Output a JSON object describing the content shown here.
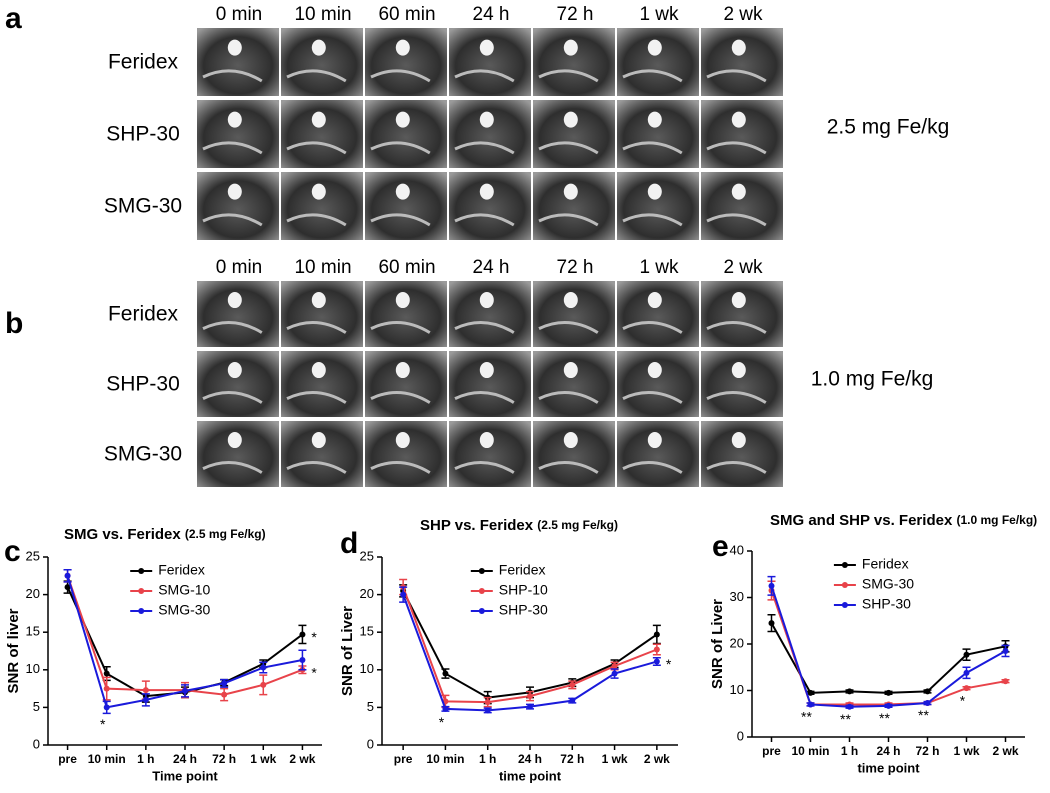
{
  "image_panels": [
    {
      "letter": "a",
      "timepoints": [
        "0 min",
        "10 min",
        "60 min",
        "24 h",
        "72 h",
        "1 wk",
        "2 wk"
      ],
      "agents": [
        "Feridex",
        "SHP-30",
        "SMG-30"
      ],
      "dose": "2.5 mg Fe/kg"
    },
    {
      "letter": "b",
      "timepoints": [
        "0 min",
        "10 min",
        "60 min",
        "24 h",
        "72 h",
        "1 wk",
        "2 wk"
      ],
      "agents": [
        "Feridex",
        "SHP-30",
        "SMG-30"
      ],
      "dose": "1.0 mg Fe/kg"
    }
  ],
  "chart_data": [
    {
      "type": "line",
      "letter": "c",
      "title": "SMG vs. Feridex",
      "title_note": "(2.5 mg Fe/kg)",
      "xlabel": "Time point",
      "ylabel": "SNR of liver",
      "categories": [
        "pre",
        "10 min",
        "1 h",
        "24 h",
        "72 h",
        "1 wk",
        "2 wk"
      ],
      "ylim": [
        0,
        25
      ],
      "yticks": [
        0,
        5,
        10,
        15,
        20,
        25
      ],
      "series": [
        {
          "name": "Feridex",
          "color": "#000000",
          "values": [
            21,
            9.5,
            6.5,
            7,
            8.3,
            10.8,
            14.7
          ],
          "errors": [
            0.8,
            0.9,
            0.8,
            0.7,
            0.4,
            0.5,
            1.2
          ]
        },
        {
          "name": "SMG-10",
          "color": "#e8434a",
          "values": [
            22.5,
            7.5,
            7.3,
            7.3,
            6.7,
            8,
            10
          ],
          "errors": [
            0.8,
            1.5,
            1.2,
            1,
            0.8,
            1.3,
            0.5
          ]
        },
        {
          "name": "SMG-30",
          "color": "#1a1adb",
          "values": [
            22.5,
            5,
            6,
            7.2,
            8.2,
            10.3,
            11.3
          ],
          "errors": [
            0.8,
            0.8,
            0.8,
            0.8,
            0.5,
            0.7,
            1.3
          ]
        }
      ],
      "annotations": [
        {
          "text": "*",
          "category": "10 min"
        },
        {
          "text": "*",
          "category": "2 wk",
          "series": "Feridex"
        },
        {
          "text": "*",
          "category": "2 wk",
          "series": "SMG-10"
        }
      ]
    },
    {
      "type": "line",
      "letter": "d",
      "title": "SHP vs. Feridex",
      "title_note": "(2.5 mg Fe/kg)",
      "xlabel": "time point",
      "ylabel": "SNR of Liver",
      "categories": [
        "pre",
        "10 min",
        "1 h",
        "24 h",
        "72 h",
        "1 wk",
        "2 wk"
      ],
      "ylim": [
        0,
        25
      ],
      "yticks": [
        0,
        5,
        10,
        15,
        20,
        25
      ],
      "series": [
        {
          "name": "Feridex",
          "color": "#000000",
          "values": [
            20.5,
            9.5,
            6.3,
            7,
            8.3,
            10.8,
            14.7
          ],
          "errors": [
            0.8,
            0.6,
            0.8,
            0.7,
            0.5,
            0.5,
            1.2
          ]
        },
        {
          "name": "SHP-10",
          "color": "#e8434a",
          "values": [
            21,
            5.8,
            5.7,
            6.5,
            8,
            10.5,
            12.7
          ],
          "errors": [
            1,
            0.8,
            0.6,
            0.6,
            0.5,
            0.5,
            0.7
          ]
        },
        {
          "name": "SHP-30",
          "color": "#1a1adb",
          "values": [
            20,
            4.8,
            4.6,
            5.1,
            5.9,
            9.5,
            11.1
          ],
          "errors": [
            1,
            0.3,
            0.3,
            0.3,
            0.3,
            0.6,
            0.5
          ]
        }
      ],
      "annotations": [
        {
          "text": "*",
          "category": "10 min"
        },
        {
          "text": "*",
          "category": "2 wk",
          "series": "SHP-30"
        }
      ]
    },
    {
      "type": "line",
      "letter": "e",
      "title": "SMG and SHP vs. Feridex",
      "title_note": "(1.0 mg Fe/kg)",
      "xlabel": "time point",
      "ylabel": "SNR of Liver",
      "categories": [
        "pre",
        "10 min",
        "1 h",
        "24 h",
        "72 h",
        "1 wk",
        "2 wk"
      ],
      "ylim": [
        0,
        40
      ],
      "yticks": [
        0,
        10,
        20,
        30,
        40
      ],
      "series": [
        {
          "name": "Feridex",
          "color": "#000000",
          "values": [
            24.5,
            9.5,
            9.8,
            9.5,
            9.8,
            17.7,
            19.5
          ],
          "errors": [
            1.8,
            0.3,
            0.3,
            0.3,
            0.3,
            1.2,
            1.2
          ]
        },
        {
          "name": "SMG-30",
          "color": "#e8434a",
          "values": [
            31.5,
            7,
            7,
            7,
            7.3,
            10.5,
            12
          ],
          "errors": [
            2,
            0.3,
            0.3,
            0.3,
            0.3,
            0.3,
            0.3
          ]
        },
        {
          "name": "SHP-30",
          "color": "#1a1adb",
          "values": [
            32.5,
            7,
            6.5,
            6.7,
            7.3,
            13.8,
            18.5
          ],
          "errors": [
            2,
            0.3,
            0.3,
            0.3,
            0.3,
            1.2,
            1.2
          ]
        }
      ],
      "annotations": [
        {
          "text": "**",
          "category": "10 min"
        },
        {
          "text": "**",
          "category": "1 h"
        },
        {
          "text": "**",
          "category": "24 h"
        },
        {
          "text": "**",
          "category": "72 h"
        },
        {
          "text": "*",
          "category": "1 wk"
        }
      ]
    }
  ]
}
